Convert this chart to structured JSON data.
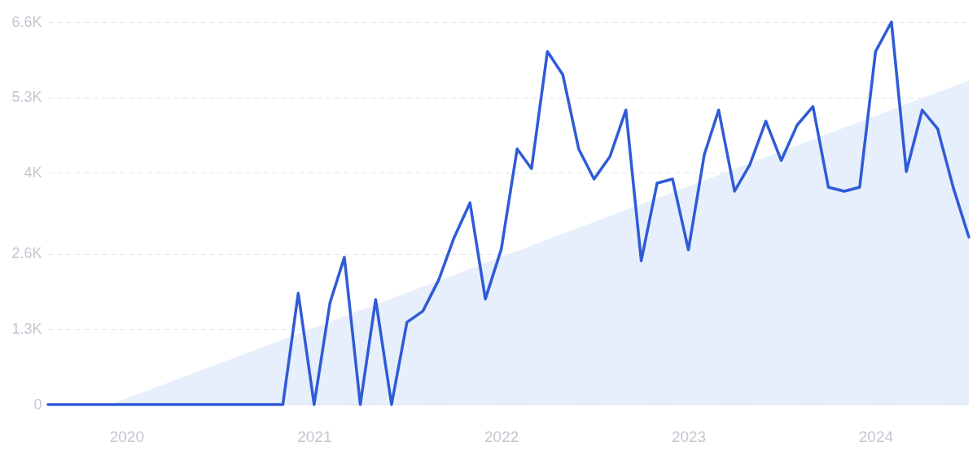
{
  "chart_data": {
    "type": "line",
    "x": [
      "2019-08",
      "2019-09",
      "2019-10",
      "2019-11",
      "2019-12",
      "2020-01",
      "2020-02",
      "2020-03",
      "2020-04",
      "2020-05",
      "2020-06",
      "2020-07",
      "2020-08",
      "2020-09",
      "2020-10",
      "2020-11",
      "2020-12",
      "2021-01",
      "2021-02",
      "2021-03",
      "2021-04",
      "2021-05",
      "2021-06",
      "2021-07",
      "2021-08",
      "2021-09",
      "2021-10",
      "2021-11",
      "2021-12",
      "2022-01",
      "2022-02",
      "2022-03",
      "2022-04",
      "2022-05",
      "2022-06",
      "2022-07",
      "2022-08",
      "2022-09",
      "2022-10",
      "2022-11",
      "2022-12",
      "2023-01",
      "2023-02",
      "2023-03",
      "2023-04",
      "2023-05",
      "2023-06",
      "2023-07",
      "2023-08",
      "2023-09",
      "2023-10",
      "2023-11",
      "2023-12",
      "2024-01",
      "2024-02",
      "2024-03",
      "2024-04",
      "2024-05",
      "2024-06",
      "2024-07"
    ],
    "series": [
      {
        "type": "area",
        "color": "#e3edfb",
        "x": [
          "2019-12",
          "2024-07"
        ],
        "values": [
          0,
          5590
        ]
      },
      {
        "color": "#2f5bd6",
        "values": [
          0,
          0,
          0,
          0,
          0,
          0,
          0,
          0,
          0,
          0,
          0,
          0,
          0,
          0,
          0,
          0,
          1920,
          0,
          1760,
          2540,
          0,
          1810,
          0,
          1420,
          1610,
          2150,
          2880,
          3480,
          1820,
          2680,
          4410,
          4070,
          6090,
          5690,
          4410,
          3890,
          4280,
          5080,
          2480,
          3820,
          3890,
          2670,
          4310,
          5080,
          3680,
          4140,
          4890,
          4210,
          4820,
          5140,
          3750,
          3680,
          3750,
          6090,
          6600,
          4020,
          5080,
          4760,
          3730,
          2890
        ]
      }
    ],
    "xlim": [
      "2019-08",
      "2024-07"
    ],
    "xticks": [
      {
        "value": "2020",
        "label": "2020"
      },
      {
        "value": "2021",
        "label": "2021"
      },
      {
        "value": "2022",
        "label": "2022"
      },
      {
        "value": "2023",
        "label": "2023"
      },
      {
        "value": "2024",
        "label": "2024"
      }
    ],
    "ylim": [
      0,
      6600
    ],
    "yticks": [
      0,
      {
        "value": 1300,
        "label": "1.3K"
      },
      {
        "value": 2600,
        "label": "2.6K"
      },
      {
        "value": 4000,
        "label": "4K"
      },
      {
        "value": 5300,
        "label": "5.3K"
      },
      {
        "value": 6600,
        "label": "6.6K"
      }
    ],
    "grid": "y",
    "line_style": "solid",
    "marker": "none"
  }
}
